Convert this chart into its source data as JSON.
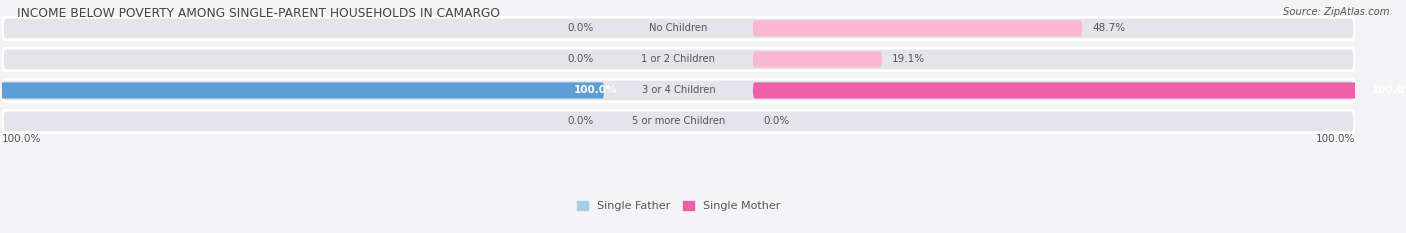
{
  "title": "INCOME BELOW POVERTY AMONG SINGLE-PARENT HOUSEHOLDS IN CAMARGO",
  "source": "Source: ZipAtlas.com",
  "categories": [
    "No Children",
    "1 or 2 Children",
    "3 or 4 Children",
    "5 or more Children"
  ],
  "single_father": [
    0.0,
    0.0,
    100.0,
    0.0
  ],
  "single_mother": [
    48.7,
    19.1,
    100.0,
    0.0
  ],
  "father_color_light": "#a8cce8",
  "father_color_full": "#5b9fd4",
  "mother_color_light": "#f9b8d0",
  "mother_color_full": "#ef5fa7",
  "bg_color": "#f4f4f6",
  "bar_bg_color": "#e4e4ea",
  "title_color": "#444444",
  "text_color": "#555555",
  "white": "#ffffff",
  "max_val": 100.0,
  "legend_father": "Single Father",
  "legend_mother": "Single Mother",
  "bottom_left_label": "100.0%",
  "bottom_right_label": "100.0%"
}
